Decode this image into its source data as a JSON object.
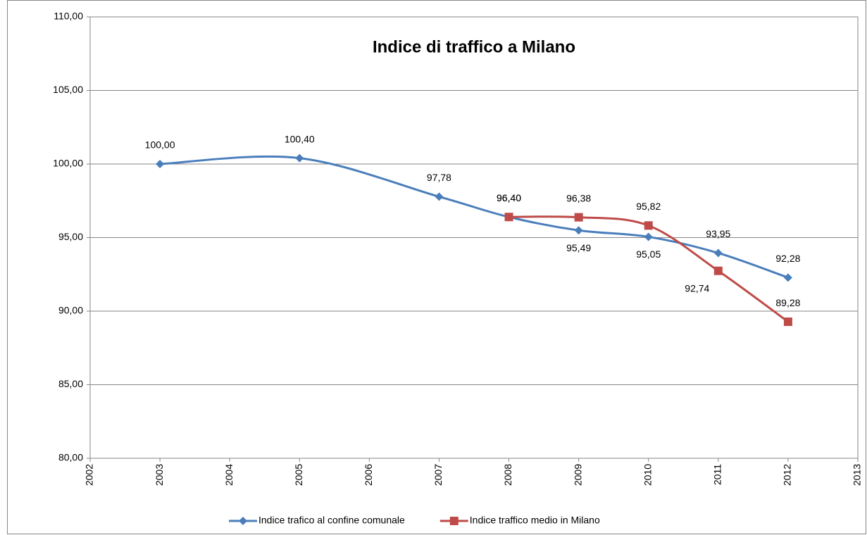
{
  "chart_data": {
    "type": "line",
    "title": "Indice di traffico a Milano",
    "xlim": [
      2002,
      2013
    ],
    "xticks": [
      2002,
      2003,
      2004,
      2005,
      2006,
      2007,
      2008,
      2009,
      2010,
      2011,
      2012,
      2013
    ],
    "ylim": [
      80,
      110
    ],
    "yticks": [
      {
        "value": 80,
        "label": "80,00"
      },
      {
        "value": 85,
        "label": "85,00"
      },
      {
        "value": 90,
        "label": "90,00"
      },
      {
        "value": 95,
        "label": "95,00"
      },
      {
        "value": 100,
        "label": "100,00"
      },
      {
        "value": 105,
        "label": "105,00"
      },
      {
        "value": 110,
        "label": "110,00"
      }
    ],
    "grid": true,
    "smooth": true,
    "legend": "bottom",
    "series": [
      {
        "name": "Indice trafico al confine comunale",
        "color": "#4a7ebb",
        "marker": "diamond",
        "x": [
          2003,
          2005,
          2007,
          2008,
          2009,
          2010,
          2011,
          2012
        ],
        "values": [
          100,
          100.4,
          97.78,
          96.4,
          95.49,
          95.05,
          93.95,
          92.28
        ],
        "value_labels": [
          "100,00",
          "100,40",
          "97,78",
          "96,40",
          "95,49",
          "95,05",
          "93,95",
          "92,28"
        ]
      },
      {
        "name": "Indice traffico medio in Milano",
        "color": "#be4b48",
        "marker": "square",
        "x": [
          2008,
          2009,
          2010,
          2011,
          2012
        ],
        "values": [
          96.4,
          96.38,
          95.82,
          92.74,
          89.28
        ],
        "value_labels": [
          "96,40",
          "96,38",
          "95,82",
          "92,74",
          "89,28"
        ]
      }
    ]
  }
}
